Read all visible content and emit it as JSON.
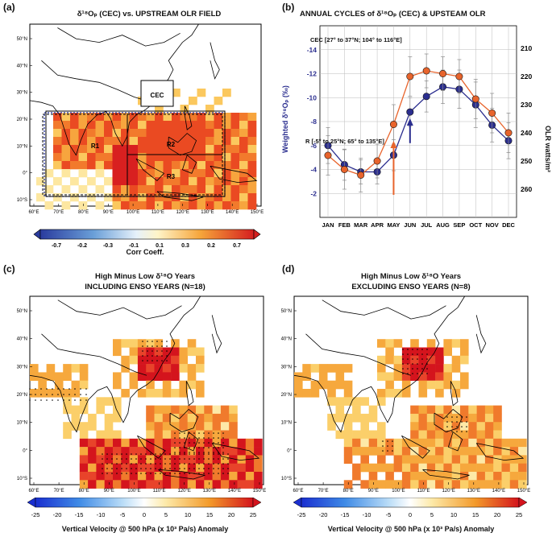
{
  "panel_a": {
    "letter": "(a)",
    "title": "δ¹⁸Oₚ (CEC) vs. UPSTREAM OLR FIELD",
    "lat_labels": [
      "50°N",
      "40°N",
      "30°N",
      "20°N",
      "10°N",
      "0°",
      "10°S"
    ],
    "lon_labels": [
      "60°E",
      "70°E",
      "80°E",
      "90°E",
      "100°E",
      "110°E",
      "120°E",
      "130°E",
      "140°E",
      "150°E"
    ],
    "boxes": [
      "CEC",
      "R1",
      "R2",
      "R3"
    ],
    "colorbar_ticks": [
      "-0.7",
      "-0.2",
      "-0.3",
      "-0.1",
      "0.1",
      "0.3",
      "0.2",
      "0.7"
    ],
    "colorbar_label": "Corr Coeff."
  },
  "panel_b": {
    "letter": "(b)",
    "title": "ANNUAL CYCLES of δ¹⁸Oₚ (CEC) & UPSTEAM OLR",
    "legend_top": "CEC [27° to 37°N; 104° to 116°E]",
    "legend_bottom": "R [-5° to 25°N; 65° to 135°E]",
    "ylabel_left": "Weighted δ¹⁸Oₚ (‰)",
    "ylabel_right": "OLR watts/m²",
    "colors": {
      "d18o": "#2b2e8f",
      "olr": "#e8642c"
    }
  },
  "chart_data": {
    "type": "line",
    "title": "ANNUAL CYCLES of δ¹⁸Oₚ (CEC) & UPSTEAM OLR",
    "categories": [
      "JAN",
      "FEB",
      "MAR",
      "APR",
      "MAY",
      "JUN",
      "JUL",
      "AUG",
      "SEP",
      "OCT",
      "NOV",
      "DEC"
    ],
    "series": [
      {
        "name": "CEC δ¹⁸Oₚ",
        "axis": "left",
        "values": [
          -6.0,
          -4.4,
          -3.8,
          -3.8,
          -5.2,
          -8.8,
          -10.1,
          -10.9,
          -10.7,
          -9.4,
          -7.7,
          -6.4
        ],
        "errors": [
          1.5,
          1.3,
          1.0,
          1.0,
          1.3,
          1.2,
          1.3,
          1.4,
          1.6,
          1.9,
          1.4,
          1.5
        ]
      },
      {
        "name": "Upstream OLR",
        "axis": "right",
        "values": [
          248,
          253,
          255,
          250,
          237,
          220,
          218,
          219,
          220,
          228,
          233,
          240
        ],
        "errors": [
          7,
          7,
          6,
          6,
          7,
          7,
          6,
          6,
          6,
          7,
          7,
          7
        ]
      }
    ],
    "ylim_left": [
      -16,
      0
    ],
    "yticks_left": [
      "-14",
      "-12",
      "-10",
      "-8",
      "-6",
      "-4",
      "-2"
    ],
    "ylim_right": [
      270,
      202
    ],
    "yticks_right": [
      "210",
      "220",
      "230",
      "240",
      "250",
      "260"
    ],
    "annotations": [
      "arrow up at JUN (δ¹⁸O)",
      "arrow up at MAY (OLR)"
    ]
  },
  "panel_c": {
    "letter": "(c)",
    "title_1": "High Minus Low δ¹⁸O Years",
    "title_2": "INCLUDING ENSO YEARS (N=18)",
    "lat_labels": [
      "50°N",
      "40°N",
      "30°N",
      "20°N",
      "10°N",
      "0°",
      "10°S"
    ],
    "lon_labels": [
      "60°E",
      "70°E",
      "80°E",
      "90°E",
      "100°E",
      "110°E",
      "120°E",
      "130°E",
      "140°E",
      "150°E"
    ]
  },
  "panel_d": {
    "letter": "(d)",
    "title_1": "High Minus Low δ¹⁸O Years",
    "title_2": "EXCLUDING ENSO YEARS (N=8)",
    "lat_labels": [
      "50°N",
      "40°N",
      "30°N",
      "20°N",
      "10°N",
      "0°",
      "10°S"
    ],
    "lon_labels": [
      "60°E",
      "70°E",
      "80°E",
      "90°E",
      "100°E",
      "110°E",
      "120°E",
      "130°E",
      "140°E",
      "150°E"
    ]
  },
  "colorbar_bottom": {
    "ticks": [
      "-25",
      "-20",
      "-15",
      "-10",
      "-5",
      "0",
      "5",
      "10",
      "15",
      "20",
      "25"
    ],
    "label": "Vertical Velocity @ 500 hPa  (x 10³ Pa/s) Anomaly"
  }
}
